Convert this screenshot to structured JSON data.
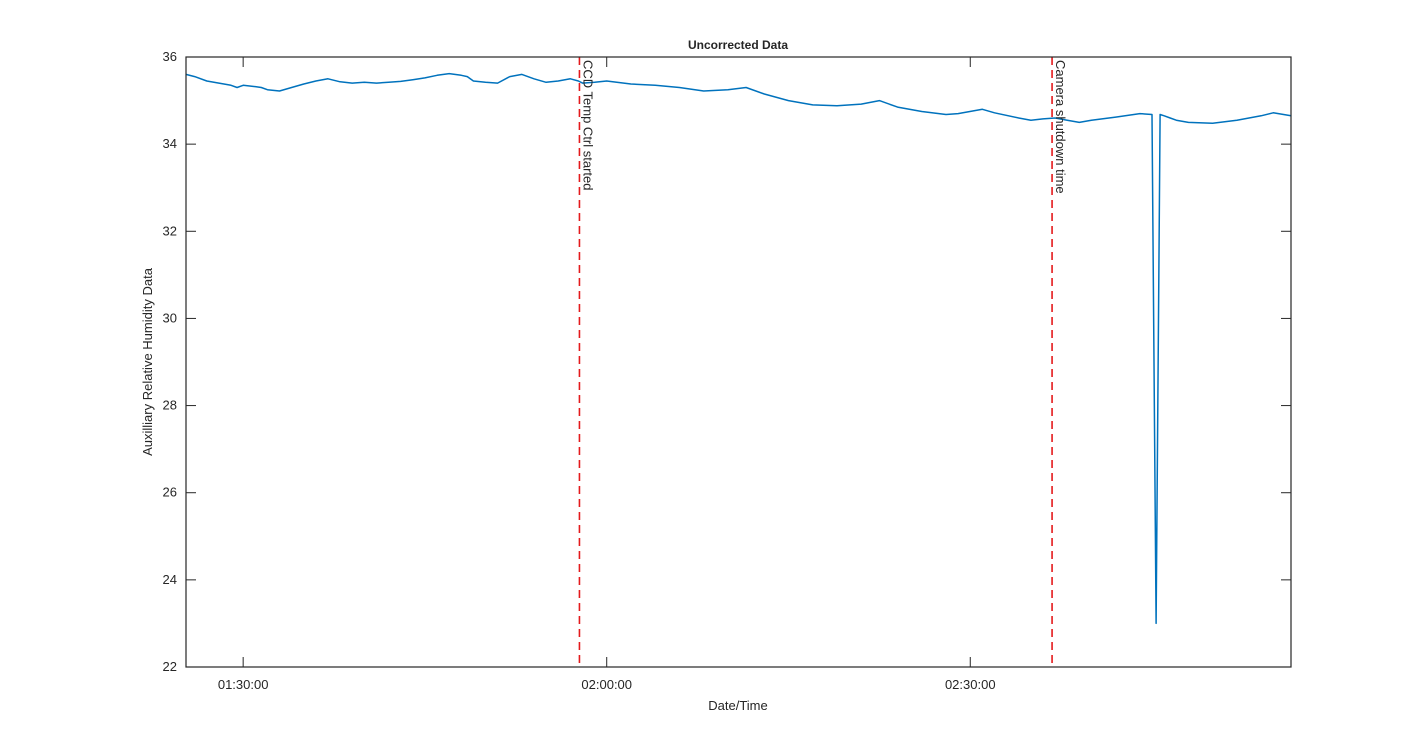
{
  "chart_data": {
    "type": "line",
    "title": "Uncorrected Data",
    "xlabel": "Date/Time",
    "ylabel": "Auxilliary Relative Humidity Data",
    "x_units": "time of day",
    "xlim": [
      "01:25:17",
      "02:56:28"
    ],
    "ylim": [
      22,
      36
    ],
    "y_ticks": [
      22,
      24,
      26,
      28,
      30,
      32,
      34,
      36
    ],
    "x_ticks": [
      {
        "t": "01:30:00",
        "label": "01:30:00"
      },
      {
        "t": "02:00:00",
        "label": "02:00:00"
      },
      {
        "t": "02:30:00",
        "label": "02:30:00"
      }
    ],
    "grid": false,
    "colors": {
      "series": "#0072BD",
      "event": "#e41a1c",
      "axes": "#262626"
    },
    "series": [
      {
        "x": [
          "01:25:17",
          "01:26:00",
          "01:27:00",
          "01:28:00",
          "01:29:00",
          "01:29:30",
          "01:30:00",
          "01:31:00",
          "01:31:30",
          "01:32:00",
          "01:33:00",
          "01:34:00",
          "01:35:00",
          "01:36:00",
          "01:37:00",
          "01:38:00",
          "01:39:00",
          "01:40:00",
          "01:41:00",
          "01:42:00",
          "01:43:00",
          "01:44:00",
          "01:45:00",
          "01:46:00",
          "01:47:00",
          "01:48:00",
          "01:48:30",
          "01:49:00",
          "01:50:00",
          "01:51:00",
          "01:52:00",
          "01:53:00",
          "01:54:00",
          "01:55:00",
          "01:56:00",
          "01:57:00",
          "01:57:40",
          "01:58:00",
          "01:59:00",
          "02:00:00",
          "02:02:00",
          "02:04:00",
          "02:06:00",
          "02:08:00",
          "02:10:00",
          "02:11:30",
          "02:13:00",
          "02:15:00",
          "02:17:00",
          "02:19:00",
          "02:21:00",
          "02:22:30",
          "02:24:00",
          "02:26:00",
          "02:28:00",
          "02:29:00",
          "02:31:00",
          "02:32:00",
          "02:34:00",
          "02:35:00",
          "02:36:00",
          "02:37:00",
          "02:38:00",
          "02:39:00",
          "02:40:00",
          "02:42:00",
          "02:44:00",
          "02:45:00",
          "02:45:20",
          "02:45:40",
          "02:46:00",
          "02:46:30",
          "02:47:00",
          "02:48:00",
          "02:50:00",
          "02:52:00",
          "02:54:00",
          "02:55:00",
          "02:56:28"
        ],
        "y": [
          35.6,
          35.55,
          35.45,
          35.4,
          35.35,
          35.3,
          35.35,
          35.32,
          35.3,
          35.25,
          35.22,
          35.3,
          35.38,
          35.45,
          35.5,
          35.43,
          35.4,
          35.42,
          35.4,
          35.42,
          35.44,
          35.48,
          35.52,
          35.58,
          35.62,
          35.58,
          35.55,
          35.45,
          35.42,
          35.4,
          35.55,
          35.6,
          35.5,
          35.42,
          35.45,
          35.5,
          35.45,
          35.4,
          35.42,
          35.45,
          35.38,
          35.35,
          35.3,
          35.22,
          35.25,
          35.3,
          35.15,
          35.0,
          34.9,
          34.88,
          34.92,
          35.0,
          34.85,
          34.75,
          34.68,
          34.7,
          34.8,
          34.72,
          34.6,
          34.55,
          34.58,
          34.6,
          34.55,
          34.5,
          34.55,
          34.62,
          34.7,
          34.68,
          23.0,
          34.68,
          34.65,
          34.6,
          34.55,
          34.5,
          34.48,
          34.55,
          34.65,
          34.72,
          34.65
        ]
      }
    ],
    "events": [
      {
        "t": "01:57:45",
        "label": "CCD Temp Ctrl started"
      },
      {
        "t": "02:36:45",
        "label": "Camera shutdown time"
      }
    ]
  }
}
